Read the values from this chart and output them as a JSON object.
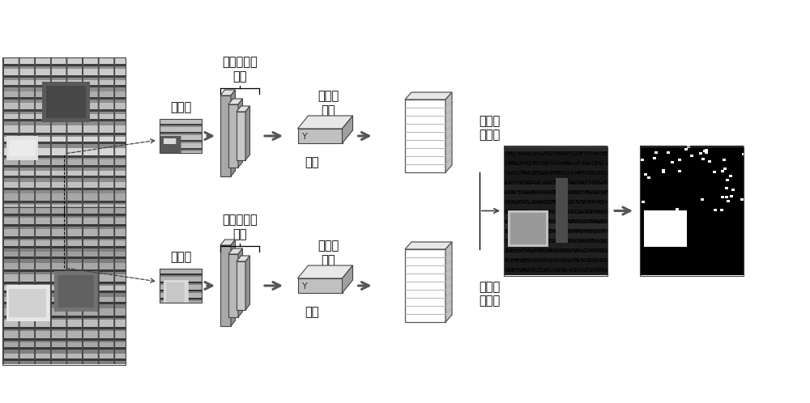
{
  "bg_color": "#ffffff",
  "text_color": "#000000",
  "label_encoder": "训练好的编\n码器",
  "label_patch": "图像块",
  "label_feature": "图像块\n特征",
  "label_global": "图像全\n局特征",
  "label_concat": "拼接",
  "layer_gray1": "#a8a8a8",
  "layer_gray2": "#b8b8b8",
  "layer_gray3": "#c8c8c8",
  "layer_top": "#e0e0e0",
  "layer_side": "#909090",
  "stack_face": "#f0f0f0",
  "stack_side": "#c0c0c0",
  "stack_top": "#e8e8e8",
  "fvec_face": "#c0c0c0",
  "fvec_top": "#e8e8e8",
  "fvec_side": "#a0a0a0",
  "font_size": 10.5
}
